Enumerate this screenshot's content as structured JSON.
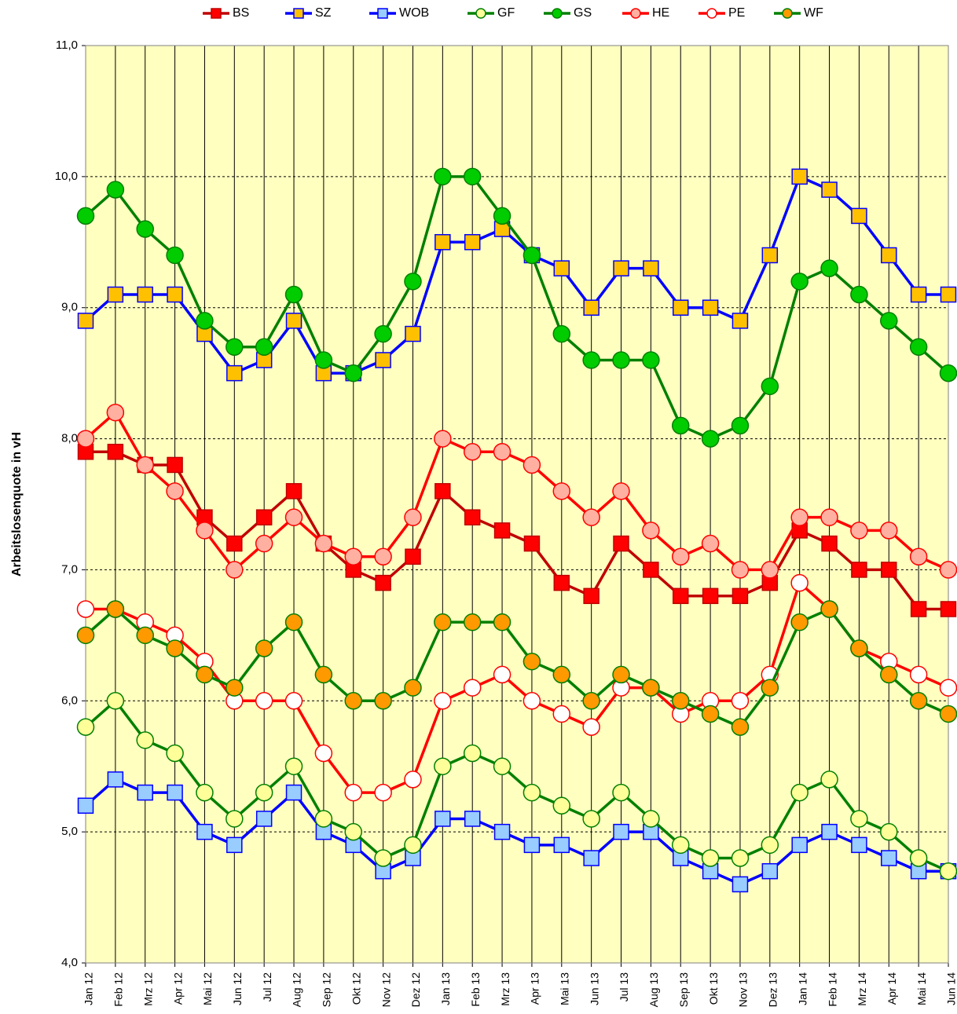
{
  "chart_data": {
    "type": "line",
    "y_label": "Arbeitslosenquote in vH",
    "categories": [
      "Jan 12",
      "Feb 12",
      "Mrz 12",
      "Apr 12",
      "Mai 12",
      "Jun 12",
      "Jul 12",
      "Aug 12",
      "Sep 12",
      "Okt 12",
      "Nov 12",
      "Dez 12",
      "Jan 13",
      "Feb 13",
      "Mrz 13",
      "Apr 13",
      "Mai 13",
      "Jun 13",
      "Jul 13",
      "Aug 13",
      "Sep 13",
      "Okt 13",
      "Nov 13",
      "Dez 13",
      "Jan 14",
      "Feb 14",
      "Mrz 14",
      "Apr 14",
      "Mai 14",
      "Jun 14"
    ],
    "ylim": [
      4,
      11
    ],
    "yticks": [
      {
        "value": 4,
        "label": "4,0"
      },
      {
        "value": 5,
        "label": "5,0"
      },
      {
        "value": 6,
        "label": "6,0"
      },
      {
        "value": 7,
        "label": "7,0"
      },
      {
        "value": 8,
        "label": "8,0"
      },
      {
        "value": 9,
        "label": "9,0"
      },
      {
        "value": 10,
        "label": "10,0"
      },
      {
        "value": 11,
        "label": "11,0"
      }
    ],
    "grid": true,
    "legend": "top",
    "background": "#ffffc0",
    "series": [
      {
        "name": "BS",
        "color": "#c00000",
        "marker_color": "#ff0000",
        "marker": "square",
        "values": [
          7.9,
          7.9,
          7.8,
          7.8,
          7.4,
          7.2,
          7.4,
          7.6,
          7.2,
          7.0,
          6.9,
          7.1,
          7.6,
          7.4,
          7.3,
          7.2,
          6.9,
          6.8,
          7.2,
          7.0,
          6.8,
          6.8,
          6.8,
          6.9,
          7.3,
          7.2,
          7.0,
          7.0,
          6.7,
          6.7
        ]
      },
      {
        "name": "SZ",
        "color": "#0000ff",
        "marker_color": "#ffc000",
        "marker": "square",
        "values": [
          8.9,
          9.1,
          9.1,
          9.1,
          8.8,
          8.5,
          8.6,
          8.9,
          8.5,
          8.5,
          8.6,
          8.8,
          9.5,
          9.5,
          9.6,
          9.4,
          9.3,
          9.0,
          9.3,
          9.3,
          9.0,
          9.0,
          8.9,
          9.4,
          10.0,
          9.9,
          9.7,
          9.4,
          9.1,
          9.1
        ]
      },
      {
        "name": "WOB",
        "color": "#0000ff",
        "marker_color": "#99ccff",
        "marker": "square",
        "values": [
          5.2,
          5.4,
          5.3,
          5.3,
          5.0,
          4.9,
          5.1,
          5.3,
          5.0,
          4.9,
          4.7,
          4.8,
          5.1,
          5.1,
          5.0,
          4.9,
          4.9,
          4.8,
          5.0,
          5.0,
          4.8,
          4.7,
          4.6,
          4.7,
          4.9,
          5.0,
          4.9,
          4.8,
          4.7,
          4.7
        ]
      },
      {
        "name": "GF",
        "color": "#008000",
        "marker_color": "#ffff99",
        "marker": "circle",
        "values": [
          5.8,
          6.0,
          5.7,
          5.6,
          5.3,
          5.1,
          5.3,
          5.5,
          5.1,
          5.0,
          4.8,
          4.9,
          5.5,
          5.6,
          5.5,
          5.3,
          5.2,
          5.1,
          5.3,
          5.1,
          4.9,
          4.8,
          4.8,
          4.9,
          5.3,
          5.4,
          5.1,
          5.0,
          4.8,
          4.7
        ]
      },
      {
        "name": "GS",
        "color": "#008000",
        "marker_color": "#00cc00",
        "marker": "circle",
        "values": [
          9.7,
          9.9,
          9.6,
          9.4,
          8.9,
          8.7,
          8.7,
          9.1,
          8.6,
          8.5,
          8.8,
          9.2,
          10.0,
          10.0,
          9.7,
          9.4,
          8.8,
          8.6,
          8.6,
          8.6,
          8.1,
          8.0,
          8.1,
          8.4,
          9.2,
          9.3,
          9.1,
          8.9,
          8.7,
          8.5
        ]
      },
      {
        "name": "HE",
        "color": "#ff0000",
        "marker_color": "#ffb0a0",
        "marker": "circle",
        "values": [
          8.0,
          8.2,
          7.8,
          7.6,
          7.3,
          7.0,
          7.2,
          7.4,
          7.2,
          7.1,
          7.1,
          7.4,
          8.0,
          7.9,
          7.9,
          7.8,
          7.6,
          7.4,
          7.6,
          7.3,
          7.1,
          7.2,
          7.0,
          7.0,
          7.4,
          7.4,
          7.3,
          7.3,
          7.1,
          7.0
        ]
      },
      {
        "name": "PE",
        "color": "#ff0000",
        "marker_color": "#ffffff",
        "marker": "circle",
        "values": [
          6.7,
          6.7,
          6.6,
          6.5,
          6.3,
          6.0,
          6.0,
          6.0,
          5.6,
          5.3,
          5.3,
          5.4,
          6.0,
          6.1,
          6.2,
          6.0,
          5.9,
          5.8,
          6.1,
          6.1,
          5.9,
          6.0,
          6.0,
          6.2,
          6.9,
          6.7,
          6.4,
          6.3,
          6.2,
          6.1
        ]
      },
      {
        "name": "WF",
        "color": "#008000",
        "marker_color": "#ff9900",
        "marker": "circle",
        "values": [
          6.5,
          6.7,
          6.5,
          6.4,
          6.2,
          6.1,
          6.4,
          6.6,
          6.2,
          6.0,
          6.0,
          6.1,
          6.6,
          6.6,
          6.6,
          6.3,
          6.2,
          6.0,
          6.2,
          6.1,
          6.0,
          5.9,
          5.8,
          6.1,
          6.6,
          6.7,
          6.4,
          6.2,
          6.0,
          5.9
        ]
      }
    ]
  }
}
